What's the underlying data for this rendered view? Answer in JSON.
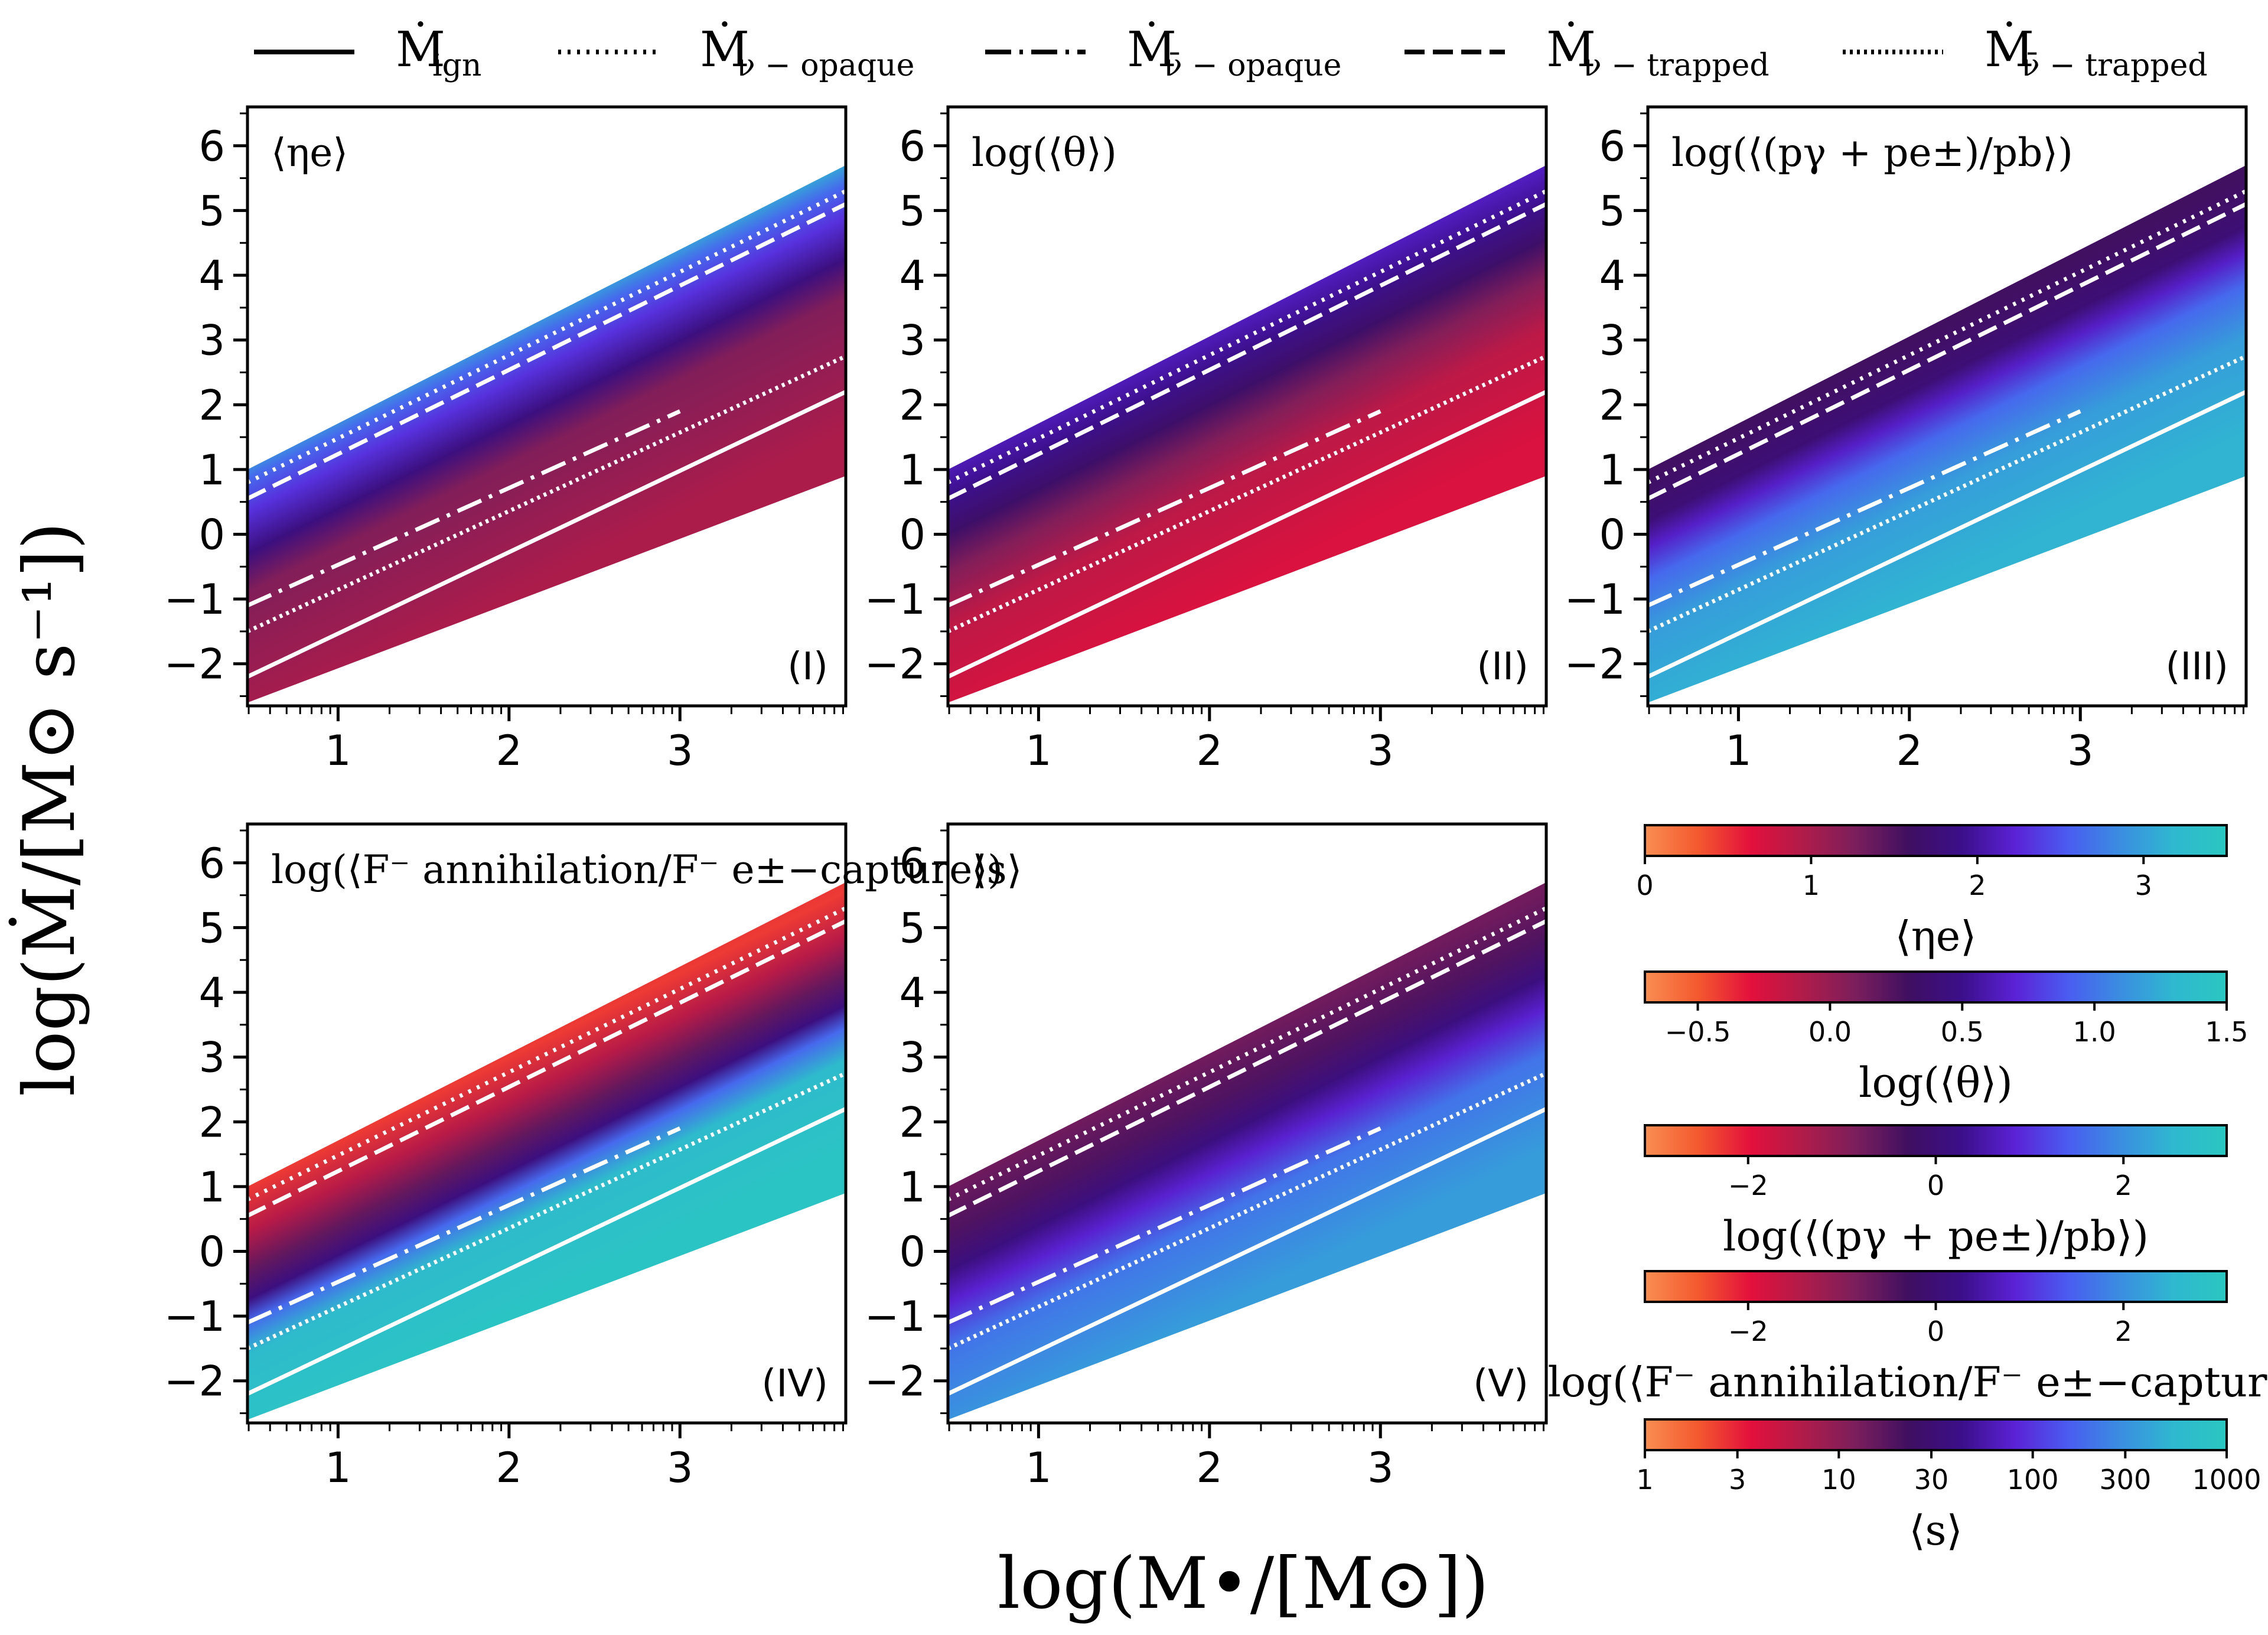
{
  "chart_data": {
    "type": "heatmap",
    "xlabel": "log(M•/[M⊙])",
    "ylabel": "log(Ṁ/[M⊙ s⁻¹])",
    "xlim": [
      0.47,
      3.97
    ],
    "ylim": [
      -2.65,
      6.6
    ],
    "x_ticks": [
      "1",
      "2",
      "3"
    ],
    "y_ticks": [
      "6",
      "5",
      "4",
      "3",
      "2",
      "1",
      "0",
      "−1",
      "−2"
    ],
    "legend": {
      "placement": "top",
      "entries": [
        {
          "base": "Ṁ",
          "sub": "ign",
          "style": "solid"
        },
        {
          "base": "Ṁ",
          "sub": "ν − opaque",
          "style": "dotted"
        },
        {
          "base": "Ṁ",
          "sub": "ν̄ − opaque",
          "style": "dashdot"
        },
        {
          "base": "Ṁ",
          "sub": "ν − trapped",
          "style": "dashed"
        },
        {
          "base": "Ṁ",
          "sub": "ν̄ − trapped",
          "style": "densely-dotted"
        }
      ]
    },
    "domain": {
      "x_range": [
        0.47,
        3.97
      ],
      "upper_edge": [
        [
          0.47,
          1.0
        ],
        [
          3.97,
          5.7
        ]
      ],
      "lower_edge": [
        [
          0.47,
          -2.6
        ],
        [
          3.97,
          0.9
        ]
      ]
    },
    "curves": {
      "ignition": {
        "style": "solid",
        "points": [
          [
            0.47,
            -2.2
          ],
          [
            3.97,
            2.2
          ]
        ]
      },
      "nu_opaque": {
        "style": "dotted",
        "points": [
          [
            0.47,
            0.8
          ],
          [
            3.97,
            5.3
          ]
        ]
      },
      "nubar_opaque": {
        "style": "dashdot",
        "points": [
          [
            0.47,
            -1.1
          ],
          [
            3.0,
            1.9
          ]
        ]
      },
      "nu_trapped": {
        "style": "dashed",
        "points": [
          [
            0.47,
            0.55
          ],
          [
            3.97,
            5.1
          ]
        ]
      },
      "nubar_trapped": {
        "style": "densely-dotted",
        "points": [
          [
            0.47,
            -1.5
          ],
          [
            3.97,
            2.75
          ]
        ]
      }
    },
    "panels": [
      {
        "id": "I",
        "label": "(I)",
        "quantity": "⟨ηe⟩",
        "color_stops_on_nudot": [
          [
            -3,
            0.28
          ],
          [
            -0.9,
            0.35
          ],
          [
            -0.3,
            0.52
          ],
          [
            0.35,
            0.66
          ],
          [
            0.85,
            0.75
          ],
          [
            1.25,
            0.9
          ],
          [
            1.5,
            0.9
          ],
          [
            1.9,
            0.77
          ],
          [
            2.25,
            0.58
          ],
          [
            2.8,
            0.42
          ],
          [
            3.6,
            0.26
          ],
          [
            4.4,
            0.18
          ]
        ]
      },
      {
        "id": "II",
        "label": "(II)",
        "quantity": "log(⟨θ⟩)",
        "color_stops_on_nudot": [
          [
            -3,
            0.2
          ],
          [
            -1.4,
            0.25
          ],
          [
            -0.6,
            0.35
          ],
          [
            0.0,
            0.47
          ],
          [
            0.6,
            0.55
          ],
          [
            1.2,
            0.62
          ],
          [
            2.0,
            0.72
          ],
          [
            2.8,
            0.82
          ],
          [
            3.6,
            0.9
          ],
          [
            4.4,
            0.96
          ]
        ]
      },
      {
        "id": "III",
        "label": "(III)",
        "quantity": "log(⟨(pγ + pe±)/pb⟩)",
        "color_stops_on_nudot": [
          [
            -3,
            0.9
          ],
          [
            -1.5,
            0.85
          ],
          [
            -0.7,
            0.75
          ],
          [
            -0.2,
            0.62
          ],
          [
            0.2,
            0.5
          ],
          [
            1.0,
            0.45
          ],
          [
            2.5,
            0.44
          ],
          [
            4.4,
            0.45
          ]
        ]
      },
      {
        "id": "IV",
        "label": "(IV)",
        "quantity": "log(⟨F⁻ annihilation/F⁻ e±−capture⟩)",
        "color_stops_on_nudot": [
          [
            -3,
            0.98
          ],
          [
            -1.6,
            0.93
          ],
          [
            -1.1,
            0.75
          ],
          [
            -0.75,
            0.52
          ],
          [
            -0.3,
            0.4
          ],
          [
            0.3,
            0.26
          ],
          [
            1.0,
            0.13
          ],
          [
            1.8,
            0.15
          ],
          [
            2.6,
            0.23
          ],
          [
            3.5,
            0.3
          ],
          [
            4.4,
            0.33
          ]
        ]
      },
      {
        "id": "V",
        "label": "(V)",
        "quantity": "⟨s⟩",
        "color_stops_on_nudot": [
          [
            -3,
            0.85
          ],
          [
            -1.5,
            0.77
          ],
          [
            -0.8,
            0.63
          ],
          [
            -0.3,
            0.52
          ],
          [
            0.3,
            0.43
          ],
          [
            1.0,
            0.38
          ],
          [
            2.0,
            0.35
          ],
          [
            3.0,
            0.34
          ],
          [
            4.4,
            0.35
          ]
        ]
      }
    ],
    "colorbars": [
      {
        "label": "⟨ηe⟩",
        "range": [
          0,
          3.5
        ],
        "scale": "linear",
        "ticks": [
          {
            "v": 0,
            "t": "0"
          },
          {
            "v": 1,
            "t": "1"
          },
          {
            "v": 2,
            "t": "2"
          },
          {
            "v": 3,
            "t": "3"
          }
        ]
      },
      {
        "label": "log(⟨θ⟩)",
        "range": [
          -0.7,
          1.5
        ],
        "scale": "linear",
        "ticks": [
          {
            "v": -0.5,
            "t": "−0.5"
          },
          {
            "v": 0.0,
            "t": "0.0"
          },
          {
            "v": 0.5,
            "t": "0.5"
          },
          {
            "v": 1.0,
            "t": "1.0"
          },
          {
            "v": 1.5,
            "t": "1.5"
          }
        ]
      },
      {
        "label": "log(⟨(pγ + pe±)/pb⟩)",
        "range": [
          -3.1,
          3.1
        ],
        "scale": "linear",
        "ticks": [
          {
            "v": -2,
            "t": "−2"
          },
          {
            "v": 0,
            "t": "0"
          },
          {
            "v": 2,
            "t": "2"
          }
        ]
      },
      {
        "label": "log(⟨F⁻ annihilation/F⁻ e±−capture⟩)",
        "range": [
          -3.1,
          3.1
        ],
        "scale": "linear",
        "ticks": [
          {
            "v": -2,
            "t": "−2"
          },
          {
            "v": 0,
            "t": "0"
          },
          {
            "v": 2,
            "t": "2"
          }
        ]
      },
      {
        "label": "⟨s⟩",
        "range": [
          1,
          1000
        ],
        "scale": "log",
        "ticks": [
          {
            "v": 1,
            "t": "1"
          },
          {
            "v": 3,
            "t": "3"
          },
          {
            "v": 10,
            "t": "10"
          },
          {
            "v": 30,
            "t": "30"
          },
          {
            "v": 100,
            "t": "100"
          },
          {
            "v": 300,
            "t": "300"
          },
          {
            "v": 1000,
            "t": "1000"
          }
        ]
      }
    ],
    "colormap": [
      "#f98e52",
      "#f4592e",
      "#e3103c",
      "#b01c4a",
      "#7a1e5c",
      "#3f0f61",
      "#3b0f8a",
      "#5b22d6",
      "#4a5cf1",
      "#3a8ee0",
      "#2fb8d0",
      "#2ac7c0"
    ]
  }
}
